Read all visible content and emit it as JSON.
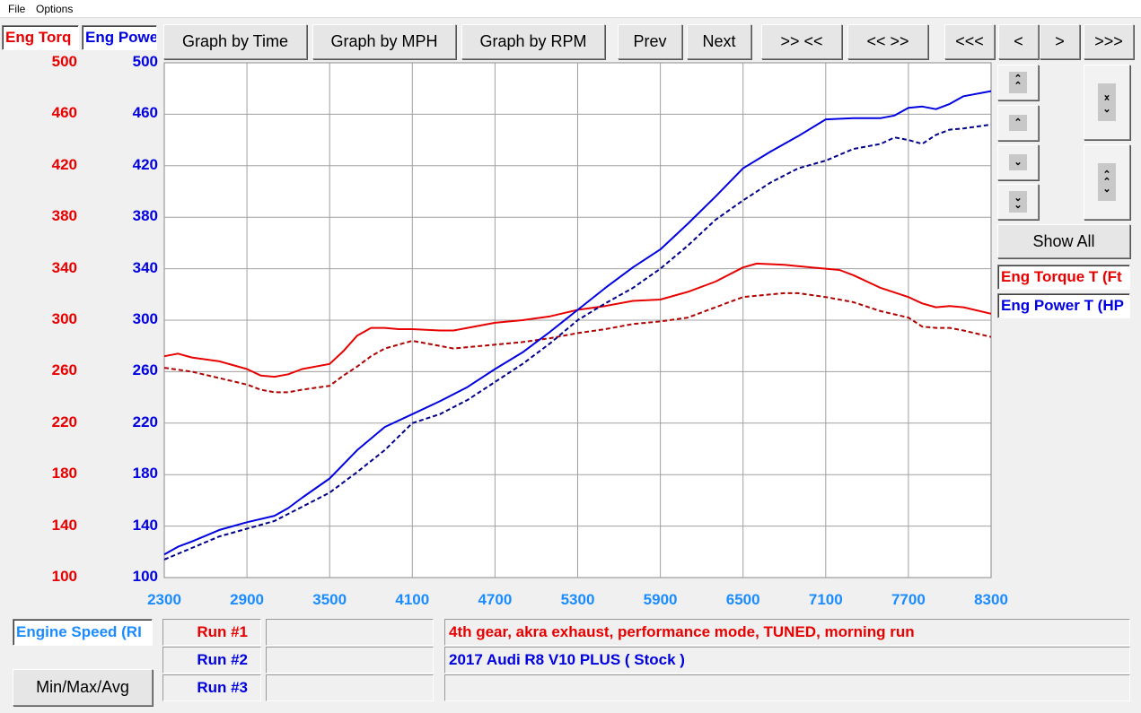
{
  "menu": [
    "File",
    "Options"
  ],
  "legend_top": {
    "torque": "Eng Torq",
    "power": "Eng Powe"
  },
  "toolbar": {
    "by_time": "Graph by Time",
    "by_mph": "Graph by MPH",
    "by_rpm": "Graph by RPM",
    "prev": "Prev",
    "next": "Next",
    "zoom_in": ">> <<",
    "zoom_out": "<< >>",
    "first": "<<<",
    "left": "<",
    "right": ">",
    "last": ">>>"
  },
  "side": {
    "show_all": "Show All",
    "channel_torque": "Eng Torque T (Ft",
    "channel_power": "Eng Power T (HP"
  },
  "bottom": {
    "xaxis_label": "Engine Speed (RI",
    "minmax": "Min/Max/Avg",
    "runs": [
      {
        "label": "Run #1",
        "color": "#e80000",
        "desc": "4th gear, akra exhaust, performance mode, TUNED, morning run",
        "desc_color": "#e80000"
      },
      {
        "label": "Run #2",
        "color": "#0000e0",
        "desc": "2017 Audi R8 V10 PLUS ( Stock )",
        "desc_color": "#0000e0"
      },
      {
        "label": "Run #3",
        "color": "#0000e0",
        "desc": "",
        "desc_color": "#0000e0"
      }
    ]
  },
  "chart_data": {
    "type": "line",
    "xlabel": "Engine Speed (RPM)",
    "xlim": [
      2300,
      8300
    ],
    "ylim": [
      100,
      500
    ],
    "x_ticks": [
      2300,
      2900,
      3500,
      4100,
      4700,
      5300,
      5900,
      6500,
      7100,
      7700,
      8300
    ],
    "y_ticks": [
      100,
      140,
      180,
      220,
      260,
      300,
      340,
      380,
      420,
      460,
      500
    ],
    "colors": {
      "torque": "#e80000",
      "torque_dashed": "#b00000",
      "power": "#0000e0",
      "power_dashed": "#00008b"
    },
    "series": [
      {
        "name": "Eng Torque Run #1",
        "style": "solid",
        "color": "#e80000",
        "x": [
          2300,
          2400,
          2500,
          2700,
          2900,
          3000,
          3100,
          3200,
          3300,
          3500,
          3600,
          3700,
          3800,
          3900,
          4000,
          4100,
          4300,
          4400,
          4500,
          4700,
          4900,
          5100,
          5300,
          5500,
          5700,
          5900,
          6100,
          6300,
          6500,
          6600,
          6800,
          7000,
          7100,
          7200,
          7300,
          7500,
          7700,
          7800,
          7900,
          8000,
          8100,
          8300
        ],
        "y": [
          272,
          274,
          271,
          268,
          262,
          257,
          256,
          258,
          262,
          266,
          276,
          288,
          294,
          294,
          293,
          293,
          292,
          292,
          294,
          298,
          300,
          303,
          308,
          311,
          315,
          316,
          322,
          330,
          341,
          344,
          343,
          341,
          340,
          339,
          335,
          325,
          318,
          313,
          310,
          311,
          310,
          305
        ]
      },
      {
        "name": "Eng Torque Run #2",
        "style": "dashed",
        "color": "#b00000",
        "x": [
          2300,
          2500,
          2700,
          2900,
          3000,
          3100,
          3200,
          3300,
          3500,
          3600,
          3700,
          3800,
          3900,
          4000,
          4100,
          4300,
          4400,
          4500,
          4700,
          4900,
          5100,
          5300,
          5500,
          5700,
          5900,
          6100,
          6300,
          6500,
          6700,
          6800,
          6900,
          7100,
          7300,
          7500,
          7700,
          7800,
          7900,
          8000,
          8100,
          8300
        ],
        "y": [
          263,
          260,
          255,
          250,
          246,
          244,
          244,
          246,
          249,
          257,
          264,
          272,
          278,
          281,
          284,
          280,
          278,
          279,
          281,
          283,
          286,
          290,
          293,
          297,
          299,
          302,
          310,
          318,
          320,
          321,
          321,
          318,
          314,
          307,
          302,
          295,
          294,
          294,
          292,
          287
        ]
      },
      {
        "name": "Eng Power Run #1",
        "style": "solid",
        "color": "#0000e0",
        "x": [
          2300,
          2400,
          2500,
          2700,
          2900,
          3100,
          3200,
          3300,
          3500,
          3700,
          3900,
          4100,
          4300,
          4500,
          4700,
          4900,
          5100,
          5300,
          5500,
          5700,
          5900,
          6100,
          6300,
          6500,
          6700,
          6900,
          7100,
          7300,
          7500,
          7600,
          7700,
          7800,
          7900,
          8000,
          8100,
          8300
        ],
        "y": [
          118,
          124,
          128,
          137,
          143,
          148,
          154,
          162,
          177,
          199,
          217,
          227,
          237,
          248,
          262,
          275,
          291,
          308,
          325,
          341,
          355,
          375,
          396,
          418,
          431,
          443,
          456,
          457,
          457,
          459,
          465,
          466,
          464,
          468,
          474,
          478
        ]
      },
      {
        "name": "Eng Power Run #2",
        "style": "dashed",
        "color": "#00008b",
        "x": [
          2300,
          2500,
          2700,
          2900,
          3100,
          3300,
          3500,
          3700,
          3900,
          4100,
          4300,
          4500,
          4700,
          4900,
          5100,
          5300,
          5500,
          5700,
          5900,
          6100,
          6300,
          6500,
          6700,
          6900,
          7100,
          7300,
          7500,
          7600,
          7700,
          7800,
          7900,
          8000,
          8100,
          8300
        ],
        "y": [
          114,
          123,
          132,
          138,
          144,
          155,
          166,
          182,
          199,
          220,
          227,
          238,
          252,
          266,
          282,
          300,
          313,
          325,
          340,
          358,
          378,
          393,
          407,
          418,
          424,
          433,
          437,
          442,
          440,
          437,
          444,
          448,
          449,
          452
        ]
      }
    ]
  }
}
